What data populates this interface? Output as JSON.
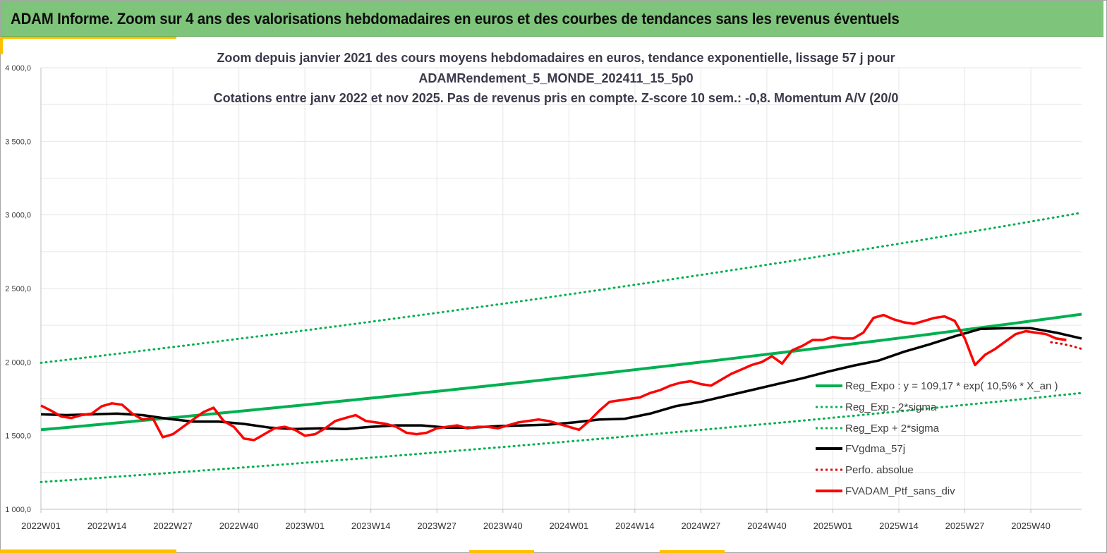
{
  "banner": {
    "title": "ADAM Informe. Zoom sur 4 ans des valorisations hebdomadaires en euros et des courbes de tendances sans les revenus éventuels"
  },
  "colors": {
    "banner_bg": "#7ec47a",
    "accent_gold": "#ffc000",
    "trend_green": "#00b050",
    "portfolio_red": "#ff0000",
    "smooth_black": "#000000",
    "perf_red_dotted": "#e00000"
  },
  "chart_data": {
    "type": "line",
    "title_lines": [
      "Zoom depuis janvier 2021 des cours moyens hebdomadaires  en euros, tendance exponentielle, lissage 57 j pour",
      "ADAMRendement_5_MONDE_202411_15_5p0",
      "Cotations  entre janv 2022 et nov 2025. Pas de revenus pris en compte. Z-score 10 sem.: -0,8. Momentum A/V (20/0"
    ],
    "xlabel": "",
    "ylabel": "",
    "ylim": [
      1000,
      4000
    ],
    "yticks": [
      1000,
      1500,
      2000,
      2500,
      3000,
      3500,
      4000
    ],
    "ytick_labels": [
      "1 000,0",
      "1 500,0",
      "2 000,0",
      "2 500,0",
      "3 000,0",
      "3 500,0",
      "4 000,0"
    ],
    "xlim": [
      0,
      205
    ],
    "xticks": [
      0,
      13,
      26,
      39,
      52,
      65,
      78,
      91,
      104,
      117,
      130,
      143,
      156,
      169,
      182,
      195
    ],
    "xtick_labels": [
      "2022W01",
      "2022W14",
      "2022W27",
      "2022W40",
      "2023W01",
      "2023W14",
      "2023W27",
      "2023W40",
      "2024W01",
      "2024W14",
      "2024W27",
      "2024W40",
      "2025W01",
      "2025W14",
      "2025W27",
      "2025W40"
    ],
    "grid": true,
    "legend_position": "right, lower",
    "series": [
      {
        "key": "reg_expo",
        "name": "Reg_Expo : y = 109,17 * exp( 10,5% *  X_an )",
        "style": "solid-thick",
        "color": "#00b050",
        "x": [
          0,
          205
        ],
        "y": [
          1540,
          2325
        ],
        "curve": "exponential"
      },
      {
        "key": "reg_minus",
        "name": "Reg_Exp - 2*sigma",
        "style": "dotted",
        "color": "#00b050",
        "x": [
          0,
          205
        ],
        "y": [
          1185,
          1790
        ],
        "curve": "exponential"
      },
      {
        "key": "reg_plus",
        "name": "Reg_Exp + 2*sigma",
        "style": "dotted",
        "color": "#00b050",
        "x": [
          0,
          205
        ],
        "y": [
          1995,
          3015
        ],
        "curve": "exponential"
      },
      {
        "key": "fvgdma",
        "name": "FVgdma_57j",
        "style": "solid-thick",
        "color": "#000000",
        "x": [
          0,
          5,
          10,
          15,
          20,
          25,
          30,
          35,
          40,
          45,
          50,
          55,
          60,
          65,
          70,
          75,
          80,
          85,
          90,
          95,
          100,
          105,
          110,
          115,
          120,
          125,
          130,
          135,
          140,
          145,
          150,
          155,
          160,
          165,
          170,
          175,
          180,
          185,
          190,
          195,
          200,
          205
        ],
        "y": [
          1645,
          1640,
          1645,
          1650,
          1640,
          1615,
          1595,
          1595,
          1580,
          1555,
          1545,
          1550,
          1545,
          1560,
          1570,
          1570,
          1555,
          1555,
          1565,
          1570,
          1575,
          1590,
          1610,
          1615,
          1650,
          1700,
          1730,
          1770,
          1810,
          1850,
          1890,
          1935,
          1975,
          2010,
          2070,
          2120,
          2175,
          2225,
          2230,
          2230,
          2200,
          2160
        ]
      },
      {
        "key": "perfo",
        "name": "Perfo. absolue",
        "style": "dotted",
        "color": "#e00000",
        "x": [
          199,
          201,
          203,
          205
        ],
        "y": [
          2135,
          2125,
          2110,
          2090
        ]
      },
      {
        "key": "fvadam",
        "name": "FVADAM_Ptf_sans_div",
        "style": "solid-thick",
        "color": "#ff0000",
        "x": [
          0,
          2,
          4,
          6,
          8,
          10,
          12,
          14,
          16,
          18,
          20,
          22,
          24,
          26,
          28,
          30,
          32,
          34,
          36,
          38,
          40,
          42,
          44,
          46,
          48,
          50,
          52,
          54,
          56,
          58,
          60,
          62,
          64,
          66,
          68,
          70,
          72,
          74,
          76,
          78,
          80,
          82,
          84,
          86,
          88,
          90,
          92,
          94,
          96,
          98,
          100,
          102,
          104,
          106,
          108,
          110,
          112,
          114,
          116,
          118,
          120,
          122,
          124,
          126,
          128,
          130,
          132,
          134,
          136,
          138,
          140,
          142,
          144,
          146,
          148,
          150,
          152,
          154,
          156,
          158,
          160,
          162,
          164,
          166,
          168,
          170,
          172,
          174,
          176,
          178,
          180,
          182,
          184,
          186,
          188,
          190,
          192,
          194,
          196,
          198,
          200,
          202
        ],
        "y": [
          1705,
          1670,
          1630,
          1620,
          1640,
          1650,
          1700,
          1720,
          1710,
          1650,
          1610,
          1620,
          1490,
          1510,
          1560,
          1610,
          1660,
          1690,
          1600,
          1560,
          1480,
          1470,
          1510,
          1550,
          1560,
          1540,
          1500,
          1510,
          1550,
          1600,
          1620,
          1640,
          1600,
          1590,
          1580,
          1560,
          1520,
          1510,
          1520,
          1550,
          1560,
          1570,
          1550,
          1560,
          1560,
          1550,
          1570,
          1590,
          1600,
          1610,
          1600,
          1580,
          1560,
          1540,
          1600,
          1670,
          1730,
          1740,
          1750,
          1760,
          1790,
          1810,
          1840,
          1860,
          1870,
          1850,
          1840,
          1880,
          1920,
          1950,
          1980,
          2000,
          2040,
          1990,
          2080,
          2110,
          2150,
          2150,
          2170,
          2160,
          2160,
          2200,
          2300,
          2320,
          2290,
          2270,
          2260,
          2280,
          2300,
          2310,
          2280,
          2160,
          1980,
          2050,
          2090,
          2140,
          2190,
          2210,
          2200,
          2190,
          2160,
          2150
        ]
      }
    ]
  },
  "legend": {
    "items": [
      {
        "label": "Reg_Expo : y = 109,17 * exp( 10,5% *  X_an )"
      },
      {
        "label": "Reg_Exp - 2*sigma"
      },
      {
        "label": "Reg_Exp + 2*sigma"
      },
      {
        "label": "FVgdma_57j"
      },
      {
        "label": "Perfo. absolue"
      },
      {
        "label": "FVADAM_Ptf_sans_div"
      }
    ]
  }
}
